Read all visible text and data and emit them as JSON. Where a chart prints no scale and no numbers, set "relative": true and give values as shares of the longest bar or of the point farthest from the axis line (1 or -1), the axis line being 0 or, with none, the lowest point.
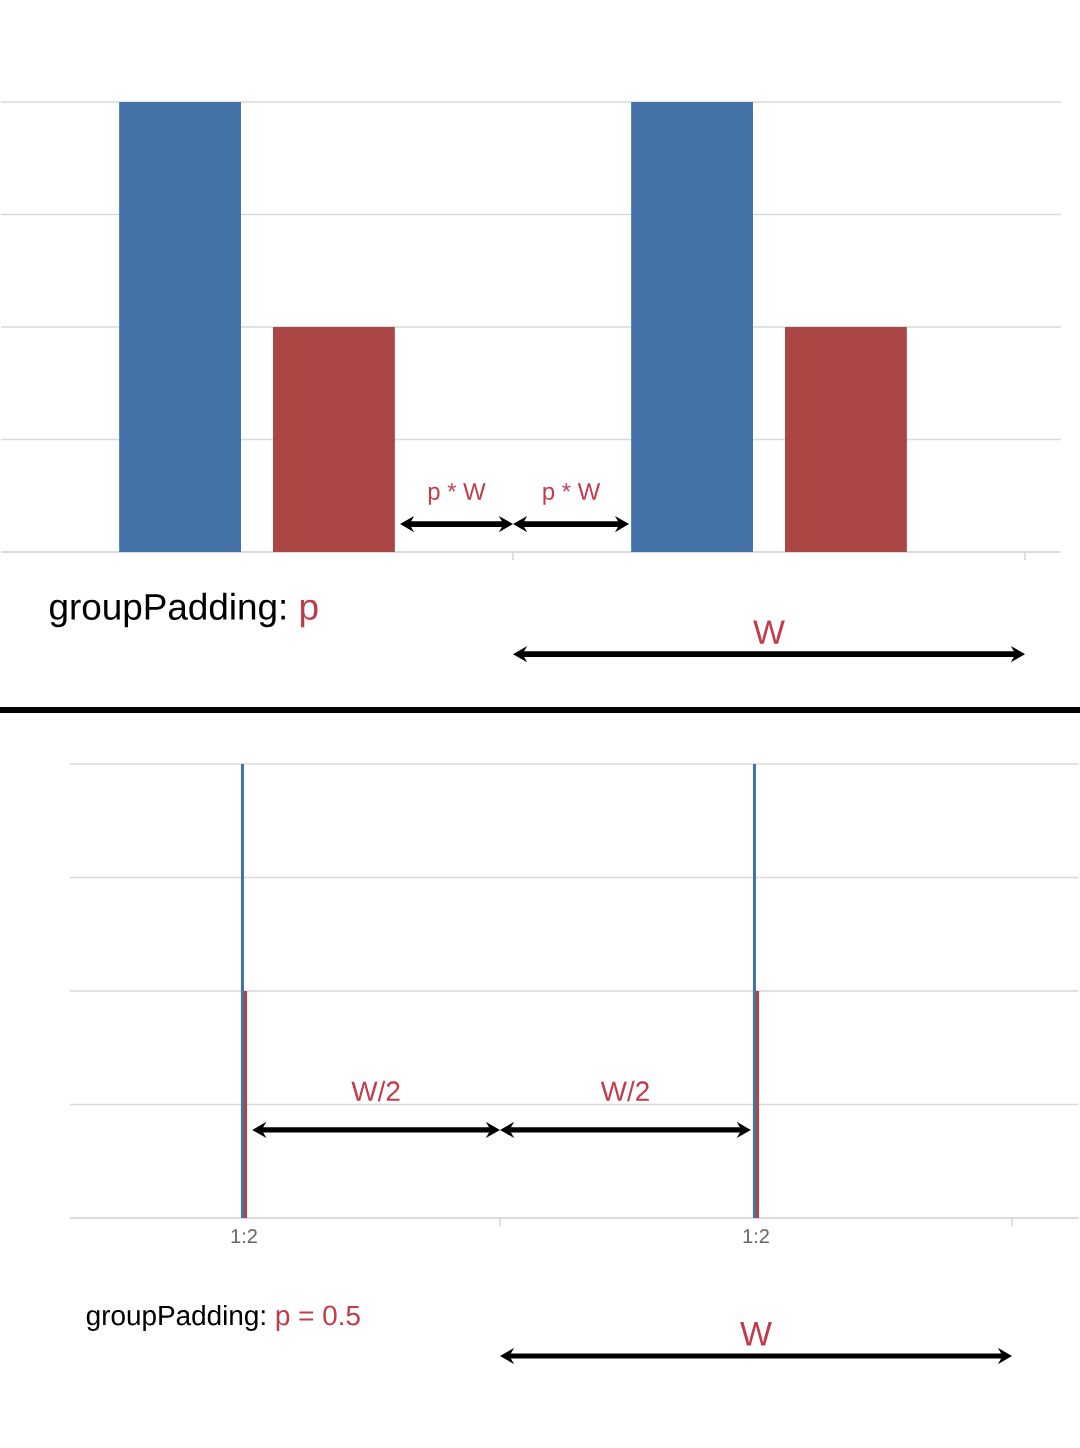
{
  "chart_data": [
    {
      "type": "bar",
      "categories": [
        null,
        null
      ],
      "series": [
        {
          "color": "#4572a7",
          "values": [
            1,
            1
          ]
        },
        {
          "color": "#aa4643",
          "values": [
            0.5,
            0.5
          ]
        }
      ],
      "relative": true,
      "grid": "y",
      "tick_labels": false,
      "annotations": [
        "groupPadding:",
        "p",
        "p * W",
        "p * W",
        "W"
      ]
    },
    {
      "type": "bar",
      "categories": [
        "1:2",
        "1:2"
      ],
      "series": [
        {
          "color": "#4572a7",
          "values": [
            1,
            1
          ]
        },
        {
          "color": "#aa4643",
          "values": [
            0.5,
            0.5
          ]
        }
      ],
      "relative": true,
      "grid": "y",
      "tick_labels": "x",
      "annotations": [
        "groupPadding:",
        "p = 0.5",
        "W/2",
        "W/2",
        "W"
      ]
    }
  ]
}
